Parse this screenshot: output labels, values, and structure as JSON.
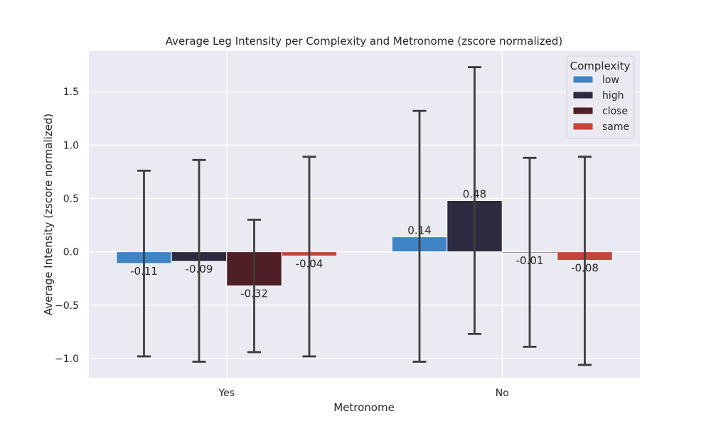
{
  "chart_data": {
    "type": "bar",
    "title": "Average Leg Intensity per Complexity and Metronome (zscore normalized)",
    "xlabel": "Metronome",
    "ylabel": "Average Intensity (zscore normalized)",
    "categories": [
      "Yes",
      "No"
    ],
    "ylim": [
      -1.18,
      1.88
    ],
    "yticks": [
      -1.0,
      -0.5,
      0.0,
      0.5,
      1.0,
      1.5
    ],
    "ytick_labels": [
      "−1.0",
      "−0.5",
      "0.0",
      "0.5",
      "1.0",
      "1.5"
    ],
    "grid": true,
    "legend": {
      "title": "Complexity",
      "placement": "top-right"
    },
    "series": [
      {
        "name": "low",
        "color": "#3f84c6",
        "values": [
          -0.11,
          0.14
        ],
        "value_labels": [
          "-0.11",
          "0.14"
        ],
        "err_low": [
          -0.98,
          -1.03
        ],
        "err_high": [
          0.76,
          1.32
        ]
      },
      {
        "name": "high",
        "color": "#2d2b40",
        "values": [
          -0.09,
          0.48
        ],
        "value_labels": [
          "-0.09",
          "0.48"
        ],
        "err_low": [
          -1.03,
          -0.77
        ],
        "err_high": [
          0.86,
          1.73
        ]
      },
      {
        "name": "close",
        "color": "#4e1f25",
        "values": [
          -0.32,
          -0.01
        ],
        "value_labels": [
          "-0.32",
          "-0.01"
        ],
        "err_low": [
          -0.94,
          -0.89
        ],
        "err_high": [
          0.3,
          0.88
        ]
      },
      {
        "name": "same",
        "color": "#c2463a",
        "values": [
          -0.04,
          -0.08
        ],
        "value_labels": [
          "-0.04",
          "-0.08"
        ],
        "err_low": [
          -0.98,
          -1.06
        ],
        "err_high": [
          0.89,
          0.89
        ]
      }
    ]
  }
}
